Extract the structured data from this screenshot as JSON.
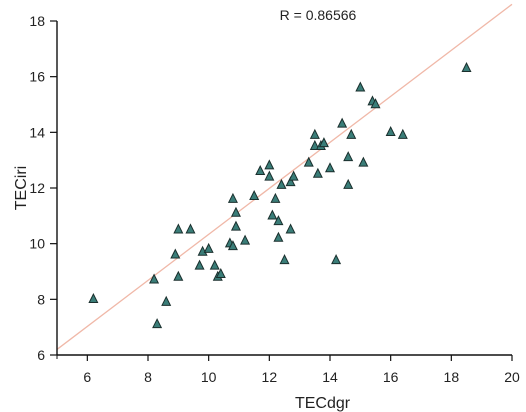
{
  "chart_data": {
    "type": "scatter",
    "annotation": "R = 0.86566",
    "xlabel": "TECdgr",
    "ylabel": "TECiri",
    "xlim": [
      5,
      20
    ],
    "ylim": [
      6,
      18
    ],
    "x_ticks": [
      6,
      8,
      10,
      12,
      14,
      16,
      18,
      20
    ],
    "y_ticks": [
      6,
      8,
      10,
      12,
      14,
      16,
      18
    ],
    "x_tick_labels": [
      "6",
      "8",
      "10",
      "12",
      "14",
      "16",
      "18",
      "20"
    ],
    "y_tick_labels": [
      "6",
      "8",
      "10",
      "12",
      "14",
      "16",
      "18"
    ],
    "grid": false,
    "marker": "triangle",
    "marker_color": "#3a7d78",
    "fit_line": {
      "x": [
        5,
        20
      ],
      "y": [
        6.2,
        18.6
      ],
      "color": "#f0b8a8"
    },
    "points": [
      {
        "x": 6.2,
        "y": 8.0
      },
      {
        "x": 8.2,
        "y": 8.7
      },
      {
        "x": 8.3,
        "y": 7.1
      },
      {
        "x": 8.6,
        "y": 7.9
      },
      {
        "x": 8.9,
        "y": 9.6
      },
      {
        "x": 9.0,
        "y": 10.5
      },
      {
        "x": 9.0,
        "y": 8.8
      },
      {
        "x": 9.4,
        "y": 10.5
      },
      {
        "x": 9.7,
        "y": 9.2
      },
      {
        "x": 9.8,
        "y": 9.7
      },
      {
        "x": 10.0,
        "y": 9.8
      },
      {
        "x": 10.2,
        "y": 9.2
      },
      {
        "x": 10.3,
        "y": 8.8
      },
      {
        "x": 10.4,
        "y": 8.9
      },
      {
        "x": 10.7,
        "y": 10.0
      },
      {
        "x": 10.8,
        "y": 9.9
      },
      {
        "x": 10.9,
        "y": 11.1
      },
      {
        "x": 10.8,
        "y": 11.6
      },
      {
        "x": 10.9,
        "y": 10.6
      },
      {
        "x": 11.2,
        "y": 10.1
      },
      {
        "x": 11.5,
        "y": 11.7
      },
      {
        "x": 11.7,
        "y": 12.6
      },
      {
        "x": 12.0,
        "y": 12.4
      },
      {
        "x": 12.0,
        "y": 12.8
      },
      {
        "x": 12.1,
        "y": 11.0
      },
      {
        "x": 12.2,
        "y": 11.6
      },
      {
        "x": 12.3,
        "y": 10.2
      },
      {
        "x": 12.3,
        "y": 10.8
      },
      {
        "x": 12.4,
        "y": 12.1
      },
      {
        "x": 12.5,
        "y": 9.4
      },
      {
        "x": 12.7,
        "y": 10.5
      },
      {
        "x": 12.7,
        "y": 12.2
      },
      {
        "x": 12.8,
        "y": 12.4
      },
      {
        "x": 13.3,
        "y": 12.9
      },
      {
        "x": 13.5,
        "y": 13.5
      },
      {
        "x": 13.5,
        "y": 13.9
      },
      {
        "x": 13.6,
        "y": 12.5
      },
      {
        "x": 13.7,
        "y": 13.5
      },
      {
        "x": 13.8,
        "y": 13.6
      },
      {
        "x": 14.0,
        "y": 12.7
      },
      {
        "x": 14.2,
        "y": 9.4
      },
      {
        "x": 14.4,
        "y": 14.3
      },
      {
        "x": 14.6,
        "y": 12.1
      },
      {
        "x": 14.6,
        "y": 13.1
      },
      {
        "x": 14.7,
        "y": 13.9
      },
      {
        "x": 15.0,
        "y": 15.6
      },
      {
        "x": 15.1,
        "y": 12.9
      },
      {
        "x": 15.4,
        "y": 15.1
      },
      {
        "x": 15.5,
        "y": 15.0
      },
      {
        "x": 16.0,
        "y": 14.0
      },
      {
        "x": 16.4,
        "y": 13.9
      },
      {
        "x": 18.5,
        "y": 16.3
      }
    ]
  }
}
